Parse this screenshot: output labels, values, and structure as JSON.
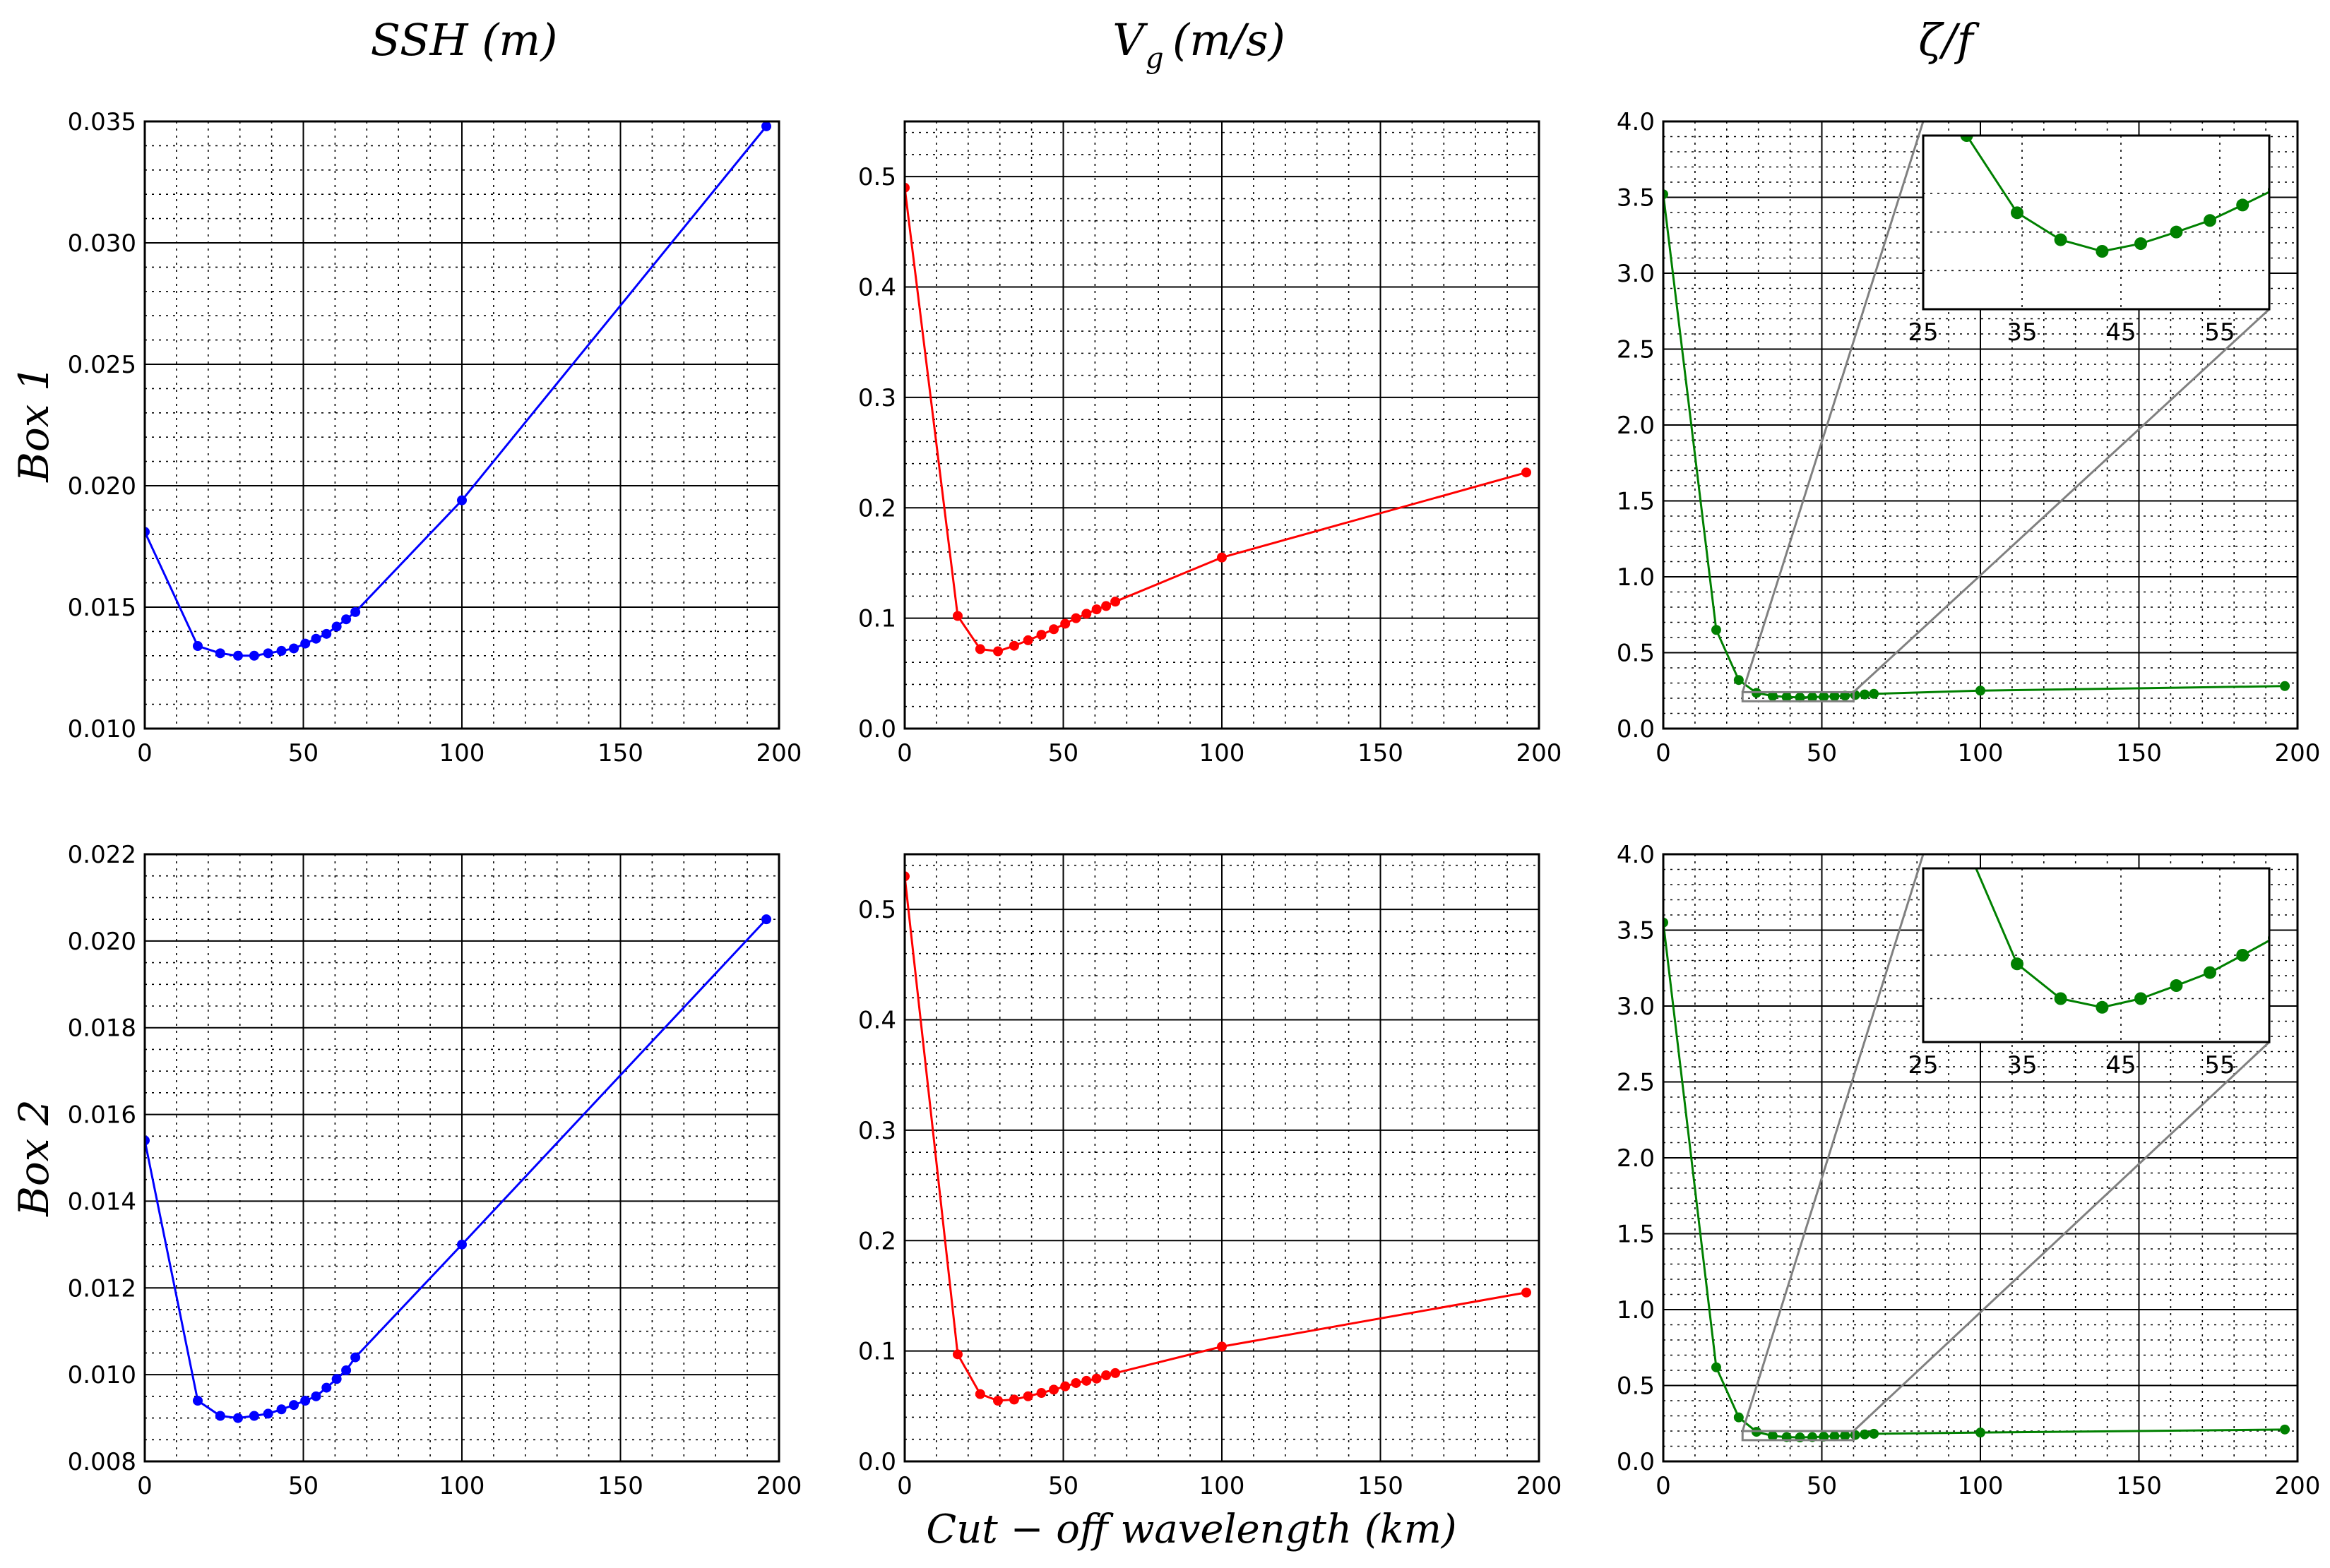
{
  "figure": {
    "column_titles": [
      "SSH (m)",
      "V",
      "g",
      "(m/s)",
      "ζ/f"
    ],
    "row_labels": [
      "Box 1",
      "Box 2"
    ],
    "xlabel": "Cut − off wavelength (km)"
  },
  "colors": {
    "ssh": "#0000ff",
    "vg": "#ff0000",
    "zeta": "#008000",
    "zoom_lines": "#808080"
  },
  "chart_data": [
    {
      "type": "line",
      "id": "box1-ssh",
      "row": 0,
      "col": 0,
      "color": "#0000ff",
      "title": "SSH (m)",
      "ylabel": "Box 1",
      "xlabel": "",
      "xlim": [
        0,
        200
      ],
      "ylim": [
        0.01,
        0.035
      ],
      "xticks": [
        0,
        50,
        100,
        150,
        200
      ],
      "xticklabels": [
        "0",
        "50",
        "100",
        "150",
        "200"
      ],
      "yticks": [
        0.01,
        0.015,
        0.02,
        0.025,
        0.03,
        0.035
      ],
      "yticklabels": [
        "0.010",
        "0.015",
        "0.020",
        "0.025",
        "0.030",
        "0.035"
      ],
      "grid": true,
      "x": [
        0,
        16.7,
        23.8,
        29.4,
        34.5,
        38.9,
        43.1,
        47,
        50.6,
        54,
        57.3,
        60.5,
        63.5,
        66.4,
        100,
        196
      ],
      "y": [
        0.0181,
        0.0134,
        0.0131,
        0.013,
        0.013,
        0.0131,
        0.0132,
        0.0133,
        0.0135,
        0.0137,
        0.0139,
        0.0142,
        0.0145,
        0.0148,
        0.0194,
        0.0348
      ]
    },
    {
      "type": "line",
      "id": "box1-vg",
      "row": 0,
      "col": 1,
      "color": "#ff0000",
      "title": "Vg (m/s)",
      "xlabel": "",
      "xlim": [
        0,
        200
      ],
      "ylim": [
        0.0,
        0.55
      ],
      "xticks": [
        0,
        50,
        100,
        150,
        200
      ],
      "xticklabels": [
        "0",
        "50",
        "100",
        "150",
        "200"
      ],
      "yticks": [
        0.0,
        0.1,
        0.2,
        0.3,
        0.4,
        0.5
      ],
      "yticklabels": [
        "0.0",
        "0.1",
        "0.2",
        "0.3",
        "0.4",
        "0.5"
      ],
      "grid": true,
      "x": [
        0,
        16.7,
        23.8,
        29.4,
        34.5,
        38.9,
        43.1,
        47,
        50.6,
        54,
        57.3,
        60.5,
        63.5,
        66.4,
        100,
        196
      ],
      "y": [
        0.49,
        0.102,
        0.072,
        0.07,
        0.075,
        0.08,
        0.085,
        0.09,
        0.095,
        0.1,
        0.104,
        0.108,
        0.111,
        0.115,
        0.155,
        0.232
      ]
    },
    {
      "type": "line",
      "id": "box1-zeta",
      "row": 0,
      "col": 2,
      "color": "#008000",
      "title": "ζ/f",
      "xlabel": "",
      "xlim": [
        0,
        200
      ],
      "ylim": [
        0.0,
        4.0
      ],
      "xticks": [
        0,
        50,
        100,
        150,
        200
      ],
      "xticklabels": [
        "0",
        "50",
        "100",
        "150",
        "200"
      ],
      "yticks": [
        0.0,
        0.5,
        1.0,
        1.5,
        2.0,
        2.5,
        3.0,
        3.5,
        4.0
      ],
      "yticklabels": [
        "0.0",
        "0.5",
        "1.0",
        "1.5",
        "2.0",
        "2.5",
        "3.0",
        "3.5",
        "4.0"
      ],
      "grid": true,
      "x": [
        0,
        16.7,
        23.8,
        29.4,
        34.5,
        38.9,
        43.1,
        47,
        50.6,
        54,
        57.3,
        60.5,
        63.5,
        66.4,
        100,
        196
      ],
      "y": [
        3.52,
        0.65,
        0.32,
        0.235,
        0.215,
        0.208,
        0.205,
        0.207,
        0.21,
        0.213,
        0.217,
        0.221,
        0.225,
        0.229,
        0.25,
        0.28
      ],
      "inset": {
        "xlim": [
          25,
          60
        ],
        "ylim": [
          0.19,
          0.235
        ],
        "xticks": [
          25,
          35,
          45,
          55
        ],
        "xticklabels": [
          "25",
          "35",
          "45",
          "55"
        ],
        "yticks": [
          0.2,
          0.21,
          0.22
        ],
        "zoom_box": {
          "x": [
            25,
            60
          ],
          "y": [
            0.18,
            0.24
          ]
        }
      }
    },
    {
      "type": "line",
      "id": "box2-ssh",
      "row": 1,
      "col": 0,
      "color": "#0000ff",
      "title": "",
      "ylabel": "Box 2",
      "xlabel": "",
      "xlim": [
        0,
        200
      ],
      "ylim": [
        0.008,
        0.022
      ],
      "xticks": [
        0,
        50,
        100,
        150,
        200
      ],
      "xticklabels": [
        "0",
        "50",
        "100",
        "150",
        "200"
      ],
      "yticks": [
        0.008,
        0.01,
        0.012,
        0.014,
        0.016,
        0.018,
        0.02,
        0.022
      ],
      "yticklabels": [
        "0.008",
        "0.010",
        "0.012",
        "0.014",
        "0.016",
        "0.018",
        "0.020",
        "0.022"
      ],
      "grid": true,
      "x": [
        0,
        16.7,
        23.8,
        29.4,
        34.5,
        38.9,
        43.1,
        47,
        50.6,
        54,
        57.3,
        60.5,
        63.5,
        66.4,
        100,
        196
      ],
      "y": [
        0.0154,
        0.0094,
        0.00905,
        0.009,
        0.00905,
        0.0091,
        0.0092,
        0.0093,
        0.0094,
        0.0095,
        0.0097,
        0.0099,
        0.0101,
        0.0104,
        0.013,
        0.0205
      ]
    },
    {
      "type": "line",
      "id": "box2-vg",
      "row": 1,
      "col": 1,
      "color": "#ff0000",
      "title": "",
      "xlabel": "Cut − off wavelength (km)",
      "xlim": [
        0,
        200
      ],
      "ylim": [
        0.0,
        0.55
      ],
      "xticks": [
        0,
        50,
        100,
        150,
        200
      ],
      "xticklabels": [
        "0",
        "50",
        "100",
        "150",
        "200"
      ],
      "yticks": [
        0.0,
        0.1,
        0.2,
        0.3,
        0.4,
        0.5
      ],
      "yticklabels": [
        "0.0",
        "0.1",
        "0.2",
        "0.3",
        "0.4",
        "0.5"
      ],
      "grid": true,
      "x": [
        0,
        16.7,
        23.8,
        29.4,
        34.5,
        38.9,
        43.1,
        47,
        50.6,
        54,
        57.3,
        60.5,
        63.5,
        66.4,
        100,
        196
      ],
      "y": [
        0.53,
        0.097,
        0.061,
        0.055,
        0.056,
        0.059,
        0.062,
        0.065,
        0.068,
        0.071,
        0.073,
        0.075,
        0.078,
        0.08,
        0.104,
        0.153
      ]
    },
    {
      "type": "line",
      "id": "box2-zeta",
      "row": 1,
      "col": 2,
      "color": "#008000",
      "title": "",
      "xlabel": "",
      "xlim": [
        0,
        200
      ],
      "ylim": [
        0.0,
        4.0
      ],
      "xticks": [
        0,
        50,
        100,
        150,
        200
      ],
      "xticklabels": [
        "0",
        "50",
        "100",
        "150",
        "200"
      ],
      "yticks": [
        0.0,
        0.5,
        1.0,
        1.5,
        2.0,
        2.5,
        3.0,
        3.5,
        4.0
      ],
      "yticklabels": [
        "0.0",
        "0.5",
        "1.0",
        "1.5",
        "2.0",
        "2.5",
        "3.0",
        "3.5",
        "4.0"
      ],
      "grid": true,
      "x": [
        0,
        16.7,
        23.8,
        29.4,
        34.5,
        38.9,
        43.1,
        47,
        50.6,
        54,
        57.3,
        60.5,
        63.5,
        66.4,
        100,
        196
      ],
      "y": [
        3.55,
        0.62,
        0.29,
        0.195,
        0.168,
        0.16,
        0.158,
        0.16,
        0.163,
        0.166,
        0.17,
        0.174,
        0.178,
        0.182,
        0.19,
        0.21
      ],
      "inset": {
        "xlim": [
          25,
          60
        ],
        "ylim": [
          0.15,
          0.19
        ],
        "xticks": [
          25,
          35,
          45,
          55
        ],
        "xticklabels": [
          "25",
          "35",
          "45",
          "55"
        ],
        "yticks": [
          0.16,
          0.17
        ],
        "zoom_box": {
          "x": [
            25,
            60
          ],
          "y": [
            0.14,
            0.2
          ]
        }
      }
    }
  ]
}
